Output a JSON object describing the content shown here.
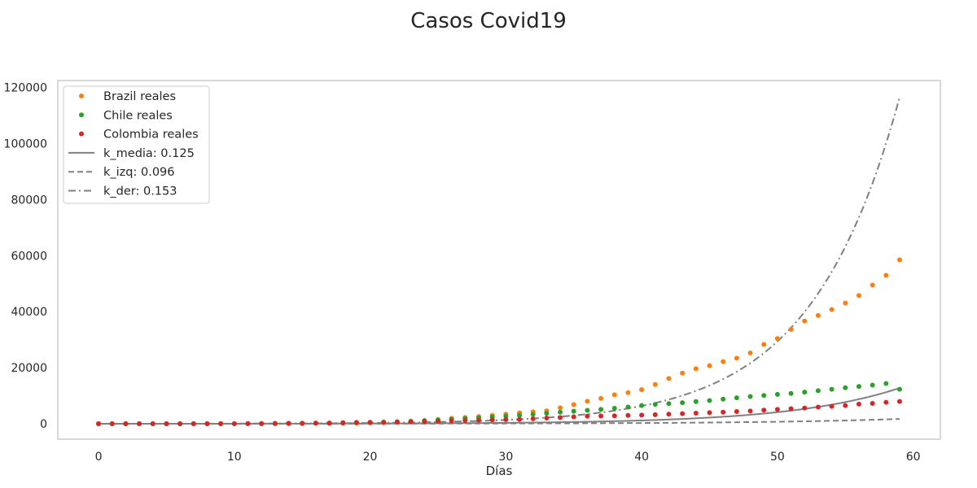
{
  "chart_data": {
    "type": "scatter",
    "title": "Casos Covid19",
    "xlabel": "Días",
    "ylabel": "",
    "xlim": [
      -3,
      62
    ],
    "ylim": [
      -5500,
      122500
    ],
    "xticks": [
      0,
      10,
      20,
      30,
      40,
      50,
      60
    ],
    "yticks": [
      0,
      20000,
      40000,
      60000,
      80000,
      100000,
      120000
    ],
    "grid": false,
    "legend_position": "top-left",
    "x": [
      0,
      1,
      2,
      3,
      4,
      5,
      6,
      7,
      8,
      9,
      10,
      11,
      12,
      13,
      14,
      15,
      16,
      17,
      18,
      19,
      20,
      21,
      22,
      23,
      24,
      25,
      26,
      27,
      28,
      29,
      30,
      31,
      32,
      33,
      34,
      35,
      36,
      37,
      38,
      39,
      40,
      41,
      42,
      43,
      44,
      45,
      46,
      47,
      48,
      49,
      50,
      51,
      52,
      53,
      54,
      55,
      56,
      57,
      58,
      59
    ],
    "series": [
      {
        "name": "Brazil reales",
        "kind": "scatter",
        "color": "#ff7f0e",
        "values": [
          1,
          1,
          1,
          2,
          2,
          2,
          2,
          4,
          4,
          13,
          13,
          20,
          25,
          31,
          38,
          52,
          151,
          151,
          162,
          200,
          321,
          372,
          621,
          793,
          1021,
          1546,
          1924,
          2247,
          2554,
          2985,
          3417,
          3904,
          4256,
          4630,
          5717,
          6836,
          8044,
          9056,
          10360,
          11130,
          12161,
          14034,
          16170,
          18092,
          19638,
          20727,
          22192,
          23430,
          25262,
          28320,
          30425,
          33682,
          36658,
          38654,
          40743,
          43079,
          45757,
          49492,
          52995,
          58509
        ]
      },
      {
        "name": "Chile reales",
        "kind": "scatter",
        "color": "#2ca02c",
        "values": [
          1,
          1,
          4,
          4,
          5,
          7,
          11,
          13,
          17,
          23,
          33,
          43,
          61,
          75,
          156,
          201,
          238,
          238,
          342,
          434,
          537,
          632,
          746,
          922,
          1142,
          1306,
          1610,
          1909,
          2139,
          2449,
          2738,
          3031,
          3404,
          3737,
          4161,
          4471,
          4815,
          5116,
          5546,
          5972,
          6501,
          6927,
          7213,
          7525,
          7917,
          8273,
          8807,
          9252,
          9730,
          10088,
          10507,
          10832,
          11296,
          11812,
          12306,
          12858,
          13331,
          13813,
          14365,
          12300
        ]
      },
      {
        "name": "Colombia reales",
        "kind": "scatter",
        "color": "#d62728",
        "values": [
          1,
          1,
          1,
          3,
          3,
          9,
          9,
          16,
          24,
          45,
          57,
          75,
          102,
          128,
          158,
          196,
          231,
          277,
          378,
          470,
          491,
          539,
          608,
          702,
          798,
          906,
          1065,
          1161,
          1267,
          1406,
          1485,
          1579,
          1780,
          2054,
          2223,
          2473,
          2709,
          2776,
          2852,
          2979,
          3105,
          3233,
          3439,
          3621,
          3792,
          3977,
          4149,
          4356,
          4561,
          4881,
          5142,
          5379,
          5597,
          5949,
          6207,
          6507,
          7006,
          7285,
          7668,
          7973
        ]
      },
      {
        "name": "k_media: 0.125",
        "kind": "line",
        "style": "solid",
        "color": "#808080",
        "a": 8,
        "k": 0.125
      },
      {
        "name": "k_izq: 0.096",
        "kind": "line",
        "style": "dashed",
        "color": "#808080",
        "a": 6,
        "k": 0.096
      },
      {
        "name": "k_der: 0.153",
        "kind": "line",
        "style": "dashdot",
        "color": "#808080",
        "a": 14,
        "k": 0.153
      }
    ]
  }
}
